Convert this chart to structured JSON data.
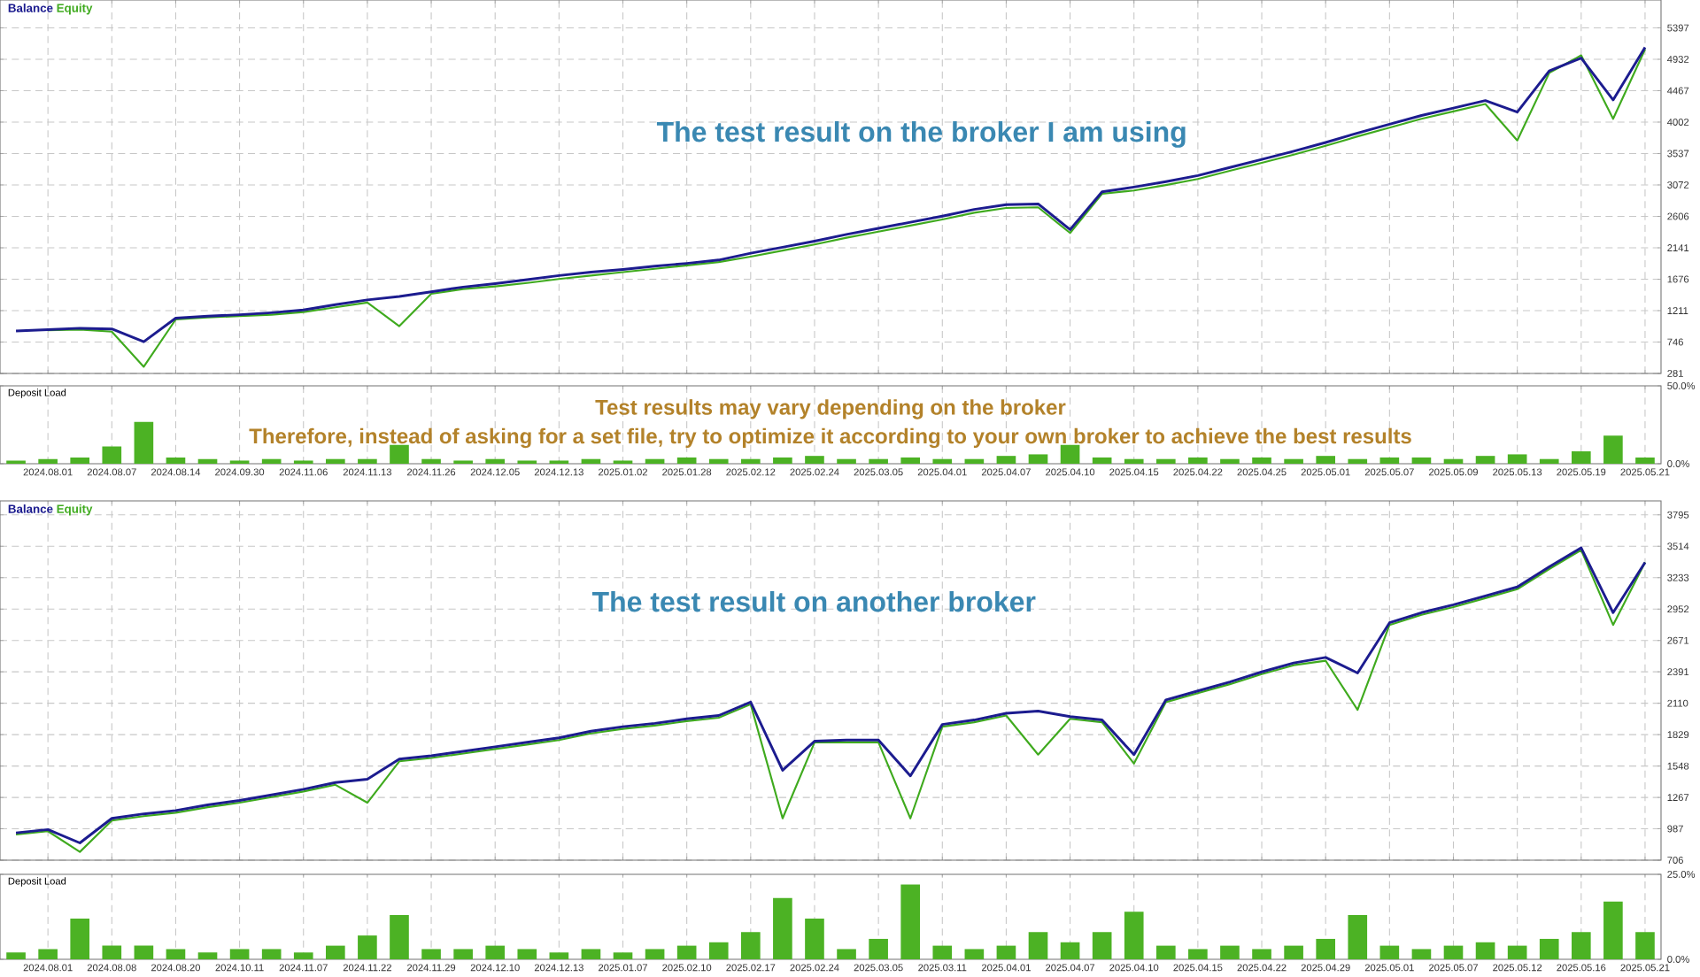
{
  "chart_data": [
    {
      "type": "line",
      "annotations": [
        "The test result on the broker I am using"
      ],
      "categories": [
        null,
        null,
        null,
        null,
        null,
        null,
        null,
        null,
        null,
        null,
        null,
        null,
        null,
        null,
        null,
        null,
        null,
        null,
        null,
        null,
        null,
        null,
        null,
        null,
        null,
        null,
        null,
        null,
        null,
        null,
        null,
        null,
        null,
        null,
        null,
        null,
        null,
        null,
        null,
        null,
        null,
        null,
        null,
        null,
        null,
        null,
        null,
        null,
        null,
        null,
        null,
        null
      ],
      "series": [
        {
          "name": "Balance",
          "color": "#1c1c8f",
          "values": [
            910,
            930,
            950,
            940,
            750,
            1100,
            1130,
            1150,
            1180,
            1220,
            1300,
            1370,
            1420,
            1490,
            1560,
            1610,
            1670,
            1730,
            1780,
            1820,
            1870,
            1910,
            1960,
            2060,
            2150,
            2240,
            2340,
            2430,
            2520,
            2610,
            2710,
            2780,
            2790,
            2410,
            2970,
            3040,
            3120,
            3210,
            3330,
            3450,
            3570,
            3700,
            3840,
            3970,
            4100,
            4210,
            4320,
            4150,
            4760,
            4950,
            4330,
            5110
          ]
        },
        {
          "name": "Equity",
          "color": "#3faa1e",
          "values": [
            null,
            920,
            930,
            900,
            380,
            1080,
            1110,
            1130,
            1150,
            1190,
            1260,
            1330,
            980,
            1460,
            1530,
            1570,
            1620,
            1680,
            1730,
            1780,
            1830,
            1880,
            1930,
            2010,
            2100,
            2190,
            2290,
            2380,
            2470,
            2560,
            2660,
            2730,
            2740,
            2360,
            2940,
            2990,
            3070,
            3160,
            3280,
            3400,
            3520,
            3650,
            3790,
            3920,
            4050,
            4160,
            4270,
            3730,
            4730,
            4990,
            4050,
            5080
          ]
        }
      ],
      "ylim": [
        281,
        5810
      ],
      "yticks": [
        281,
        746,
        1211,
        1676,
        2141,
        2606,
        3072,
        3537,
        4002,
        4467,
        4932,
        5397
      ],
      "tick_labels": "y",
      "grid": true,
      "legend": "top left"
    },
    {
      "type": "bar",
      "title": "Deposit Load",
      "annotations": [
        "Test results may vary depending on the broker",
        "Therefore, instead of asking for a set file, try to optimize it according to your own broker to achieve the best results"
      ],
      "categories": [
        null,
        "2024.08.01",
        null,
        "2024.08.07",
        null,
        "2024.08.14",
        null,
        "2024.09.30",
        null,
        "2024.11.06",
        null,
        "2024.11.13",
        null,
        "2024.11.26",
        null,
        "2024.12.05",
        null,
        "2024.12.13",
        null,
        "2025.01.02",
        null,
        "2025.01.28",
        null,
        "2025.02.12",
        null,
        "2025.02.24",
        null,
        "2025.03.05",
        null,
        "2025.04.01",
        null,
        "2025.04.07",
        null,
        "2025.04.10",
        null,
        "2025.04.15",
        null,
        "2025.04.22",
        null,
        "2025.04.25",
        null,
        "2025.05.01",
        null,
        "2025.05.07",
        null,
        "2025.05.09",
        null,
        "2025.05.13",
        null,
        "2025.05.19",
        null,
        "2025.05.21"
      ],
      "series": [
        {
          "color": "#4cb224",
          "values": [
            2,
            3,
            4,
            11,
            27,
            4,
            3,
            2,
            3,
            2,
            3,
            3,
            12,
            3,
            2,
            3,
            2,
            2,
            3,
            2,
            3,
            4,
            3,
            3,
            4,
            5,
            3,
            3,
            4,
            3,
            3,
            5,
            6,
            12,
            4,
            3,
            3,
            4,
            3,
            4,
            3,
            5,
            3,
            4,
            4,
            3,
            5,
            6,
            3,
            8,
            18,
            4
          ]
        }
      ],
      "ylim": [
        0,
        50
      ],
      "yticks": [
        {
          "value": 0,
          "label": "0.0%"
        },
        {
          "value": 50,
          "label": "50.0%"
        }
      ],
      "grid": "x"
    },
    {
      "type": "line",
      "annotations": [
        "The test result on another broker"
      ],
      "categories": [
        null,
        null,
        null,
        null,
        null,
        null,
        null,
        null,
        null,
        null,
        null,
        null,
        null,
        null,
        null,
        null,
        null,
        null,
        null,
        null,
        null,
        null,
        null,
        null,
        null,
        null,
        null,
        null,
        null,
        null,
        null,
        null,
        null,
        null,
        null,
        null,
        null,
        null,
        null,
        null,
        null,
        null,
        null,
        null,
        null,
        null,
        null,
        null,
        null,
        null,
        null,
        null
      ],
      "series": [
        {
          "name": "Balance",
          "color": "#1c1c8f",
          "values": [
            950,
            980,
            860,
            1080,
            1120,
            1150,
            1200,
            1240,
            1290,
            1340,
            1400,
            1430,
            1610,
            1640,
            1680,
            1720,
            1760,
            1800,
            1860,
            1900,
            1930,
            1970,
            2000,
            2120,
            1510,
            1770,
            1780,
            1780,
            1460,
            1920,
            1960,
            2020,
            2040,
            1990,
            1960,
            1650,
            2140,
            2220,
            2300,
            2390,
            2470,
            2520,
            2380,
            2830,
            2920,
            2990,
            3070,
            3150,
            3330,
            3500,
            2920,
            3370
          ]
        },
        {
          "name": "Equity",
          "color": "#3faa1e",
          "values": [
            935,
            965,
            780,
            1060,
            1100,
            1130,
            1180,
            1220,
            1270,
            1320,
            1380,
            1220,
            1590,
            1620,
            1660,
            1700,
            1740,
            1780,
            1840,
            1880,
            1910,
            1950,
            1980,
            2100,
            1080,
            1760,
            1760,
            1760,
            1080,
            1900,
            1940,
            2000,
            1650,
            1970,
            1940,
            1570,
            2120,
            2200,
            2280,
            2370,
            2450,
            2490,
            2050,
            2810,
            2900,
            2970,
            3050,
            3130,
            3310,
            3480,
            2810,
            3370
          ]
        }
      ],
      "ylim": [
        706,
        3920
      ],
      "yticks": [
        706,
        987,
        1267,
        1548,
        1829,
        2110,
        2391,
        2671,
        2952,
        3233,
        3514,
        3795
      ],
      "tick_labels": "y",
      "grid": true,
      "legend": "top left"
    },
    {
      "type": "bar",
      "title": "Deposit Load",
      "categories": [
        null,
        "2024.08.01",
        null,
        "2024.08.08",
        null,
        "2024.08.20",
        null,
        "2024.10.11",
        null,
        "2024.11.07",
        null,
        "2024.11.22",
        null,
        "2024.11.29",
        null,
        "2024.12.10",
        null,
        "2024.12.13",
        null,
        "2025.01.07",
        null,
        "2025.02.10",
        null,
        "2025.02.17",
        null,
        "2025.02.24",
        null,
        "2025.03.05",
        null,
        "2025.03.11",
        null,
        "2025.04.01",
        null,
        "2025.04.07",
        null,
        "2025.04.10",
        null,
        "2025.04.15",
        null,
        "2025.04.22",
        null,
        "2025.04.29",
        null,
        "2025.05.01",
        null,
        "2025.05.07",
        null,
        "2025.05.12",
        null,
        "2025.05.16",
        null,
        "2025.05.21"
      ],
      "series": [
        {
          "color": "#4cb224",
          "values": [
            2,
            3,
            12,
            4,
            4,
            3,
            2,
            3,
            3,
            2,
            4,
            7,
            13,
            3,
            3,
            4,
            3,
            2,
            3,
            2,
            3,
            4,
            5,
            8,
            18,
            12,
            3,
            6,
            22,
            4,
            3,
            4,
            8,
            5,
            8,
            14,
            4,
            3,
            4,
            3,
            4,
            6,
            13,
            4,
            3,
            4,
            5,
            4,
            6,
            8,
            17,
            8
          ]
        }
      ],
      "ylim": [
        0,
        25
      ],
      "yticks": [
        {
          "value": 0,
          "label": "0.0%"
        },
        {
          "value": 25,
          "label": "25.0%"
        }
      ],
      "grid": "x"
    }
  ]
}
